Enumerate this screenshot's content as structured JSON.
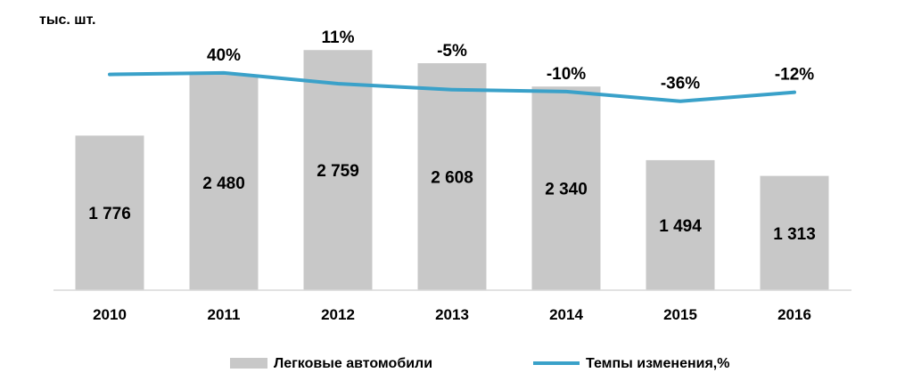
{
  "chart_data": {
    "type": "bar",
    "unit_label": "тыс. шт.",
    "categories": [
      "2010",
      "2011",
      "2012",
      "2013",
      "2014",
      "2015",
      "2016"
    ],
    "ylim": [
      0,
      3150
    ],
    "line_ylim": [
      -600,
      140
    ],
    "grid": false,
    "legend_position": "bottom",
    "series": [
      {
        "name": "Легковые автомобили",
        "kind": "bar",
        "color": "#c8c8c8",
        "values": [
          1776,
          2480,
          2759,
          2608,
          2340,
          1494,
          1313
        ],
        "value_labels": [
          "1 776",
          "2 480",
          "2 759",
          "2 608",
          "2 340",
          "1 494",
          "1 313"
        ]
      },
      {
        "name": "Темпы изменения,%",
        "kind": "line",
        "color": "#3aa1c9",
        "values": [
          null,
          40,
          11,
          -5,
          -10,
          -36,
          -12
        ],
        "value_labels": [
          "",
          "40%",
          "11%",
          "-5%",
          "-10%",
          "-36%",
          "-12%"
        ]
      }
    ]
  }
}
